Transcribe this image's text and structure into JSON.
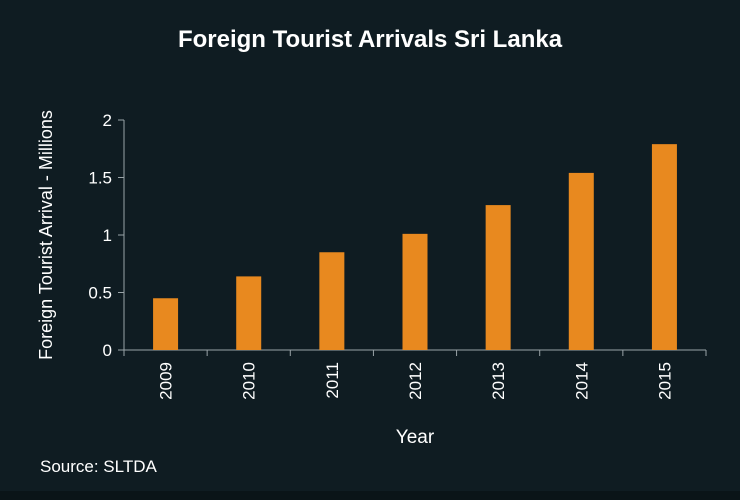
{
  "chart_data": {
    "type": "bar",
    "title": "Foreign Tourist Arrivals Sri Lanka",
    "xlabel": "Year",
    "ylabel": "Foreign Tourist Arrival - Millions",
    "categories": [
      "2009",
      "2010",
      "2011",
      "2012",
      "2013",
      "2014",
      "2015"
    ],
    "values": [
      0.45,
      0.64,
      0.85,
      1.01,
      1.26,
      1.54,
      1.79
    ],
    "ylim": [
      0,
      2
    ],
    "yticks": [
      "0",
      "0.5",
      "1",
      "1.5",
      "2"
    ],
    "bar_color": "#e8891f",
    "axis_color": "#9aa4a8",
    "grid": false,
    "legend": "none"
  },
  "source_note": "Source: SLTDA"
}
